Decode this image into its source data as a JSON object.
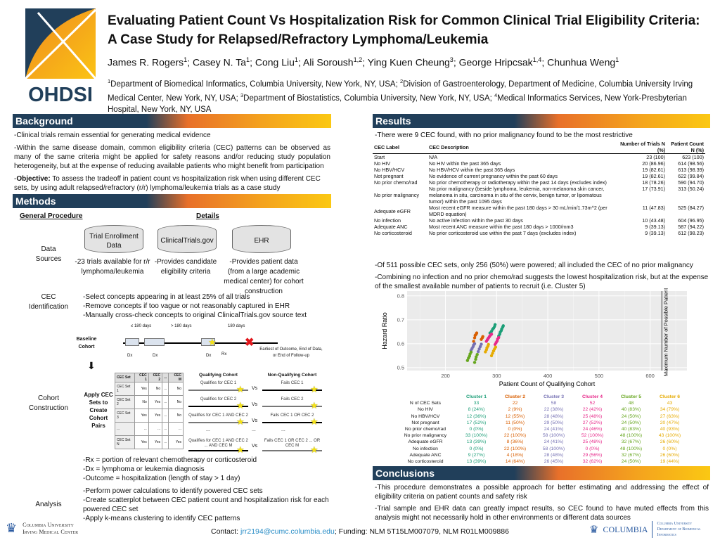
{
  "header": {
    "title": "Evaluating Patient Count Vs Hospitalization Risk for Common Clinical Trial Eligibility Criteria: A Case Study for Relapsed/Refractory Lymphoma/Leukemia",
    "authors": [
      {
        "n": "James R. Rogers",
        "s": "1"
      },
      {
        "n": "Casey N. Ta",
        "s": "1"
      },
      {
        "n": "Cong Liu",
        "s": "1"
      },
      {
        "n": "Ali Soroush",
        "s": "1,2"
      },
      {
        "n": "Ying Kuen Cheung",
        "s": "3"
      },
      {
        "n": "George Hripcsak",
        "s": "1,4"
      },
      {
        "n": "Chunhua Weng",
        "s": "1"
      }
    ],
    "affiliations": [
      {
        "s": "1",
        "t": "Department of Biomedical Informatics, Columbia University, New York, NY, USA; "
      },
      {
        "s": "2",
        "t": "Division of Gastroenterology, Department of Medicine, Columbia University Irving Medical Center, New York, NY, USA; "
      },
      {
        "s": "3",
        "t": "Department of Biostatistics, Columbia University, New York, NY, USA; "
      },
      {
        "s": "4",
        "t": "Medical Informatics Services, New York-Presbyterian Hospital, New York, NY, USA"
      }
    ],
    "logo": "OHDSI"
  },
  "background": {
    "title": "Background",
    "p1": "-Clinical trials remain essential for generating medical evidence",
    "p2": "-Within the same disease domain, common eligibility criteria (CEC) patterns can be observed as many of the same criteria might be applied for safety reasons and/or reducing study population heterogeneity, but at the expense of reducing available patients who might benefit from participation",
    "obj_label": "Objective:",
    "obj": " To assess the tradeoff in patient count vs hospitalization risk when using different CEC sets, by using adult relapsed/refractory (r/r) lymphoma/leukemia trials as a case study"
  },
  "methods": {
    "title": "Methods",
    "col1": "General Procedure",
    "col2": "Details",
    "data_sources": "Data Sources",
    "sources": [
      {
        "name": "Trial Enrollment Data",
        "desc": "-23 trials available for r/r lymphoma/leukemia"
      },
      {
        "name": "ClinicalTrials.gov",
        "desc": "-Provides candidate eligibility criteria"
      },
      {
        "name": "EHR",
        "desc": "-Provides patient data (from a large academic medical center) for cohort construction"
      }
    ],
    "cec_id": "CEC Identification",
    "cec_id_text": [
      "-Select concepts appearing in at least 25% of all trials",
      "-Remove concepts if too vague or not reasonably captured in EHR",
      "-Manually cross-check concepts to original ClinicalTrials.gov source text"
    ],
    "timeline": {
      "baseline": "Baseline Cohort",
      "g1": "≤ 180 days",
      "g2": "> 180 days",
      "g3": "180 days",
      "dx": "Dx",
      "rx": "Rx",
      "end": "Earliest of Outcome, End of Data, or End of Follow-up"
    },
    "cohort": "Cohort Construction",
    "apply": "Apply CEC Sets to Create Cohort Pairs",
    "mini_table": [
      [
        "CEC Set",
        "CEC 1",
        "CEC 2",
        "...",
        "CEC M"
      ],
      [
        "CEC Set 1",
        "Yes",
        "No",
        "...",
        "No"
      ],
      [
        "CEC Set 2",
        "No",
        "Yes",
        "...",
        "No"
      ],
      [
        "CEC Set 3",
        "Yes",
        "Yes",
        "...",
        "No"
      ],
      [
        "...",
        "...",
        "...",
        "...",
        "..."
      ],
      [
        "CEC Set N",
        "Yes",
        "Yes",
        "...",
        "Yes"
      ]
    ],
    "qual_title": "Qualifying Cohort",
    "nonqual_title": "Non-Qualifying Cohort",
    "vs": "Vs",
    "dots": "...",
    "qual": [
      "Qualifies for CEC 1",
      "Qualifies for CEC 2",
      "Qualifies for CEC 1 AND CEC 2",
      "Qualifies for CEC 1 AND CEC 2 ... AND CEC M"
    ],
    "nonqual": [
      "Fails CEC 1",
      "Fails CEC 2",
      "Fails CEC 1 OR CEC 2",
      "Fails CEC 1 OR CEC 2 ... OR CEC M"
    ],
    "notes": [
      "-Rx = portion of relevant chemotherapy or corticosteroid",
      "-Dx = lymphoma or leukemia diagnosis",
      "-Outcome = hospitalization (length of stay > 1 day)"
    ],
    "analysis": "Analysis",
    "analysis_text": [
      "-Perform power calculations to identify powered CEC sets",
      "-Create scatterplot between CEC patient count and hospitalization risk for each powered CEC set",
      "-Apply k-means clustering to identify CEC patterns"
    ]
  },
  "results": {
    "title": "Results",
    "intro": "-There were 9 CEC found, with no prior malignancy found to be the most restrictive",
    "table_headers": [
      "CEC Label",
      "CEC Description",
      "Number of Trials N (%)",
      "Patient Count N (%)"
    ],
    "rows": [
      [
        "Start",
        "N/A",
        "23 (100)",
        "623 (100)"
      ],
      [
        "No HIV",
        "No HIV within the past 365 days",
        "20 (86.96)",
        "614 (98.56)"
      ],
      [
        "No HBV/HCV",
        "No HBV/HCV within the past 365 days",
        "19 (82.61)",
        "613 (98.39)"
      ],
      [
        "Not pregnant",
        "No evidence of current pregnancy within the past 60 days",
        "19 (82.61)",
        "622 (99.84)"
      ],
      [
        "No prior chemo/rad",
        "No prior chemotherapy or radiotherapy within the past 14 days (excludes index)",
        "18 (78.26)",
        "590 (94.70)"
      ],
      [
        "No prior malignancy",
        "No prior malignancy (beside lymphoma, leukemia, non-melanoma skin cancer, melanoma in situ, carcinoma in situ of the cervix, benign tumor, or lipomatous tumor) within the past 1095 days",
        "17 (73.91)",
        "313 (50.24)"
      ],
      [
        "Adequate eGFR",
        "Most recent eGFR measure within the past 180 days > 30 mL/min/1.73m^2 (per MDRD equation)",
        "11 (47.83)",
        "525 (84.27)"
      ],
      [
        "No infection",
        "No active infection within the past 30 days",
        "10 (43.48)",
        "604 (96.95)"
      ],
      [
        "Adequate ANC",
        "Most recent ANC measure within the past 180 days > 1000/mm3",
        "9 (39.13)",
        "587 (94.22)"
      ],
      [
        "No corticosteroid",
        "No prior corticosteroid use within the past 7 days (excludes index)",
        "9 (39.13)",
        "612 (98.23)"
      ]
    ],
    "p2": "-Of 511 possible CEC sets, only 256 (50%) were powered; all included the CEC of no prior malignancy",
    "p3": "-Combining no infection and no prior chemo/rad suggests the lowest hospitalization risk, but at the expense of the smallest available number of patients to recruit (i.e. Cluster 5)",
    "clusters": {
      "headers": [
        "Cluster 1",
        "Cluster 2",
        "Cluster 3",
        "Cluster 4",
        "Cluster 5",
        "Cluster 6"
      ],
      "colors": [
        "#1b9e77",
        "#d95f02",
        "#7570b3",
        "#e7298a",
        "#66a61e",
        "#e6ab02"
      ],
      "rows": [
        [
          "N of CEC Sets",
          "33",
          "22",
          "58",
          "52",
          "48",
          "43"
        ],
        [
          "No HIV",
          "8 (24%)",
          "2 (9%)",
          "22 (38%)",
          "22 (42%)",
          "40 (83%)",
          "34 (79%)"
        ],
        [
          "No HBV/HCV",
          "12 (36%)",
          "12 (55%)",
          "28 (48%)",
          "25 (48%)",
          "24 (50%)",
          "27 (63%)"
        ],
        [
          "Not pregnant",
          "17 (52%)",
          "11 (50%)",
          "29 (50%)",
          "27 (52%)",
          "24 (50%)",
          "20 (47%)"
        ],
        [
          "No prior chemo/rad",
          "0 (0%)",
          "0 (0%)",
          "24 (41%)",
          "24 (46%)",
          "40 (83%)",
          "40 (93%)"
        ],
        [
          "No prior malignancy",
          "33 (100%)",
          "22 (100%)",
          "58 (100%)",
          "52 (100%)",
          "48 (100%)",
          "43 (100%)"
        ],
        [
          "Adequate eGFR",
          "13 (39%)",
          "8 (36%)",
          "24 (41%)",
          "25 (48%)",
          "32 (67%)",
          "26 (60%)"
        ],
        [
          "No infection",
          "0 (0%)",
          "22 (100%)",
          "58 (100%)",
          "0 (0%)",
          "48 (100%)",
          "0 (0%)"
        ],
        [
          "Adequate ANC",
          "9 (27%)",
          "4 (18%)",
          "28 (48%)",
          "29 (56%)",
          "32 (67%)",
          "26 (60%)"
        ],
        [
          "No corticosteroid",
          "13 (39%)",
          "14 (64%)",
          "26 (45%)",
          "32 (62%)",
          "24 (50%)",
          "19 (44%)"
        ]
      ]
    }
  },
  "chart_data": {
    "type": "scatter",
    "xlabel": "Patient Count of Qualifying Cohort",
    "ylabel": "Hazard Ratio",
    "xlim": [
      125,
      672
    ],
    "ylim": [
      0.488,
      0.82
    ],
    "xticks": [
      200,
      300,
      400,
      500,
      600
    ],
    "yticks": [
      0.5,
      0.6,
      0.7,
      0.8
    ],
    "grid": true,
    "vline": {
      "x": 623,
      "label": "Maximum Number of Possible Patients"
    },
    "series": [
      {
        "name": "Cluster 1",
        "color": "#1b9e77",
        "points": [
          [
            287,
            0.645
          ],
          [
            290,
            0.652
          ],
          [
            292,
            0.66
          ],
          [
            294,
            0.665
          ],
          [
            296,
            0.672
          ],
          [
            297,
            0.68
          ],
          [
            289,
            0.64
          ],
          [
            304,
            0.632
          ],
          [
            306,
            0.64
          ],
          [
            307,
            0.648
          ],
          [
            309,
            0.655
          ],
          [
            310,
            0.662
          ],
          [
            312,
            0.67
          ],
          [
            313,
            0.675
          ]
        ]
      },
      {
        "name": "Cluster 2",
        "color": "#d95f02",
        "points": [
          [
            255,
            0.61
          ],
          [
            257,
            0.625
          ],
          [
            258,
            0.635
          ],
          [
            260,
            0.64
          ],
          [
            261,
            0.645
          ],
          [
            270,
            0.618
          ],
          [
            272,
            0.625
          ],
          [
            273,
            0.63
          ]
        ]
      },
      {
        "name": "Cluster 3",
        "color": "#7570b3",
        "points": [
          [
            250,
            0.572
          ],
          [
            252,
            0.58
          ],
          [
            254,
            0.588
          ],
          [
            255,
            0.595
          ],
          [
            257,
            0.6
          ],
          [
            264,
            0.567
          ],
          [
            266,
            0.578
          ],
          [
            268,
            0.588
          ],
          [
            270,
            0.598
          ]
        ]
      },
      {
        "name": "Cluster 4",
        "color": "#e7298a",
        "points": [
          [
            280,
            0.61
          ],
          [
            282,
            0.617
          ],
          [
            284,
            0.624
          ],
          [
            286,
            0.63
          ],
          [
            288,
            0.636
          ],
          [
            290,
            0.64
          ],
          [
            297,
            0.597
          ],
          [
            299,
            0.605
          ],
          [
            301,
            0.612
          ],
          [
            302,
            0.62
          ],
          [
            304,
            0.626
          ]
        ]
      },
      {
        "name": "Cluster 5",
        "color": "#66a61e",
        "points": [
          [
            243,
            0.53
          ],
          [
            245,
            0.54
          ],
          [
            247,
            0.548
          ],
          [
            248,
            0.557
          ],
          [
            250,
            0.565
          ],
          [
            257,
            0.522
          ],
          [
            259,
            0.535
          ],
          [
            260,
            0.545
          ],
          [
            262,
            0.555
          ]
        ]
      },
      {
        "name": "Cluster 6",
        "color": "#e6ab02",
        "points": [
          [
            278,
            0.566
          ],
          [
            280,
            0.575
          ],
          [
            281,
            0.583
          ],
          [
            283,
            0.59
          ],
          [
            284,
            0.597
          ],
          [
            290,
            0.55
          ],
          [
            292,
            0.56
          ],
          [
            294,
            0.57
          ],
          [
            296,
            0.578
          ],
          [
            298,
            0.586
          ]
        ]
      }
    ]
  },
  "conclusions": {
    "title": "Conclusions",
    "p1": "-This procedure demonstrates a possible approach for better estimating and addressing the effect of eligibility criteria on patient counts and safety risk",
    "p2": "-Trial sample and EHR data can greatly impact results, so CEC found to have muted effects from this analysis might not necessarily hold in other environments or different data sources"
  },
  "footer": {
    "contact_label": "Contact:",
    "email": "jrr2194@cumc.columbia.edu",
    "funding": "; Funding: NLM 5T15LM007079, NLM R01LM009886",
    "cu_left": "Columbia University Irving Medical Center",
    "cu_right": "COLUMBIA",
    "dbmi": "Columbia University Department of Biomedical Informatics"
  }
}
